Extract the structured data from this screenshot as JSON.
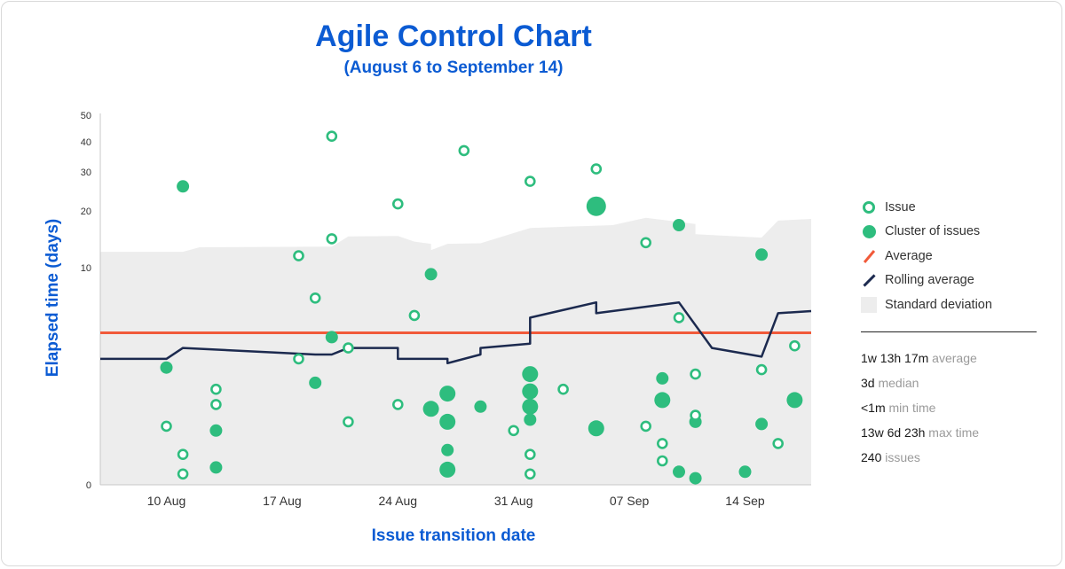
{
  "chart_data": {
    "type": "scatter",
    "title": "Agile Control Chart",
    "subtitle": "(August 6 to September 14)",
    "xlabel": "Issue transition date",
    "ylabel": "Elapsed time (days)",
    "x_tick_labels": [
      "10 Aug",
      "17 Aug",
      "24 Aug",
      "31 Aug",
      "07 Sep",
      "14 Sep"
    ],
    "x_tick_values": [
      "2018-08-10",
      "2018-08-17",
      "2018-08-24",
      "2018-08-31",
      "2018-09-07",
      "2018-09-14"
    ],
    "xlim": [
      "2018-08-06",
      "2018-09-18"
    ],
    "y_tick_values": [
      0,
      10,
      20,
      30,
      40,
      50
    ],
    "y_scale": "compressed",
    "ylim": [
      0,
      50
    ],
    "average_days": 7,
    "issues": [
      {
        "x": "2018-08-11",
        "y": 0.5
      },
      {
        "x": "2018-08-10",
        "y": 2.7
      },
      {
        "x": "2018-08-11",
        "y": 1.4
      },
      {
        "x": "2018-08-13",
        "y": 3.7
      },
      {
        "x": "2018-08-13",
        "y": 4.4
      },
      {
        "x": "2018-08-18",
        "y": 12.1
      },
      {
        "x": "2018-08-18",
        "y": 5.8
      },
      {
        "x": "2018-08-19",
        "y": 8.6
      },
      {
        "x": "2018-08-20",
        "y": 42.1
      },
      {
        "x": "2018-08-20",
        "y": 15.1
      },
      {
        "x": "2018-08-21",
        "y": 6.3
      },
      {
        "x": "2018-08-21",
        "y": 2.9
      },
      {
        "x": "2018-08-24",
        "y": 21.8
      },
      {
        "x": "2018-08-24",
        "y": 3.7
      },
      {
        "x": "2018-08-25",
        "y": 7.8
      },
      {
        "x": "2018-08-28",
        "y": 37.1
      },
      {
        "x": "2018-08-31",
        "y": 2.5
      },
      {
        "x": "2018-09-01",
        "y": 1.4
      },
      {
        "x": "2018-09-01",
        "y": 27.6
      },
      {
        "x": "2018-09-01",
        "y": 0.5
      },
      {
        "x": "2018-09-03",
        "y": 4.4
      },
      {
        "x": "2018-09-05",
        "y": 31.0
      },
      {
        "x": "2018-09-08",
        "y": 14.4
      },
      {
        "x": "2018-09-08",
        "y": 2.7
      },
      {
        "x": "2018-09-09",
        "y": 1.1
      },
      {
        "x": "2018-09-09",
        "y": 1.9
      },
      {
        "x": "2018-09-10",
        "y": 7.7
      },
      {
        "x": "2018-09-11",
        "y": 5.1
      },
      {
        "x": "2018-09-11",
        "y": 3.2
      },
      {
        "x": "2018-09-15",
        "y": 5.3
      },
      {
        "x": "2018-09-16",
        "y": 1.9
      },
      {
        "x": "2018-09-17",
        "y": 6.4
      }
    ],
    "clusters": [
      {
        "x": "2018-08-11",
        "y": 26.3,
        "size": "small"
      },
      {
        "x": "2018-08-10",
        "y": 5.4,
        "size": "small"
      },
      {
        "x": "2018-08-13",
        "y": 2.5,
        "size": "small"
      },
      {
        "x": "2018-08-13",
        "y": 0.8,
        "size": "small"
      },
      {
        "x": "2018-08-19",
        "y": 4.7,
        "size": "small"
      },
      {
        "x": "2018-08-20",
        "y": 6.8,
        "size": "small"
      },
      {
        "x": "2018-08-26",
        "y": 9.7,
        "size": "small"
      },
      {
        "x": "2018-08-26",
        "y": 3.5,
        "size": "medium"
      },
      {
        "x": "2018-08-27",
        "y": 1.6,
        "size": "small"
      },
      {
        "x": "2018-08-27",
        "y": 0.7,
        "size": "medium"
      },
      {
        "x": "2018-08-27",
        "y": 2.9,
        "size": "medium"
      },
      {
        "x": "2018-08-27",
        "y": 4.2,
        "size": "medium"
      },
      {
        "x": "2018-08-29",
        "y": 3.6,
        "size": "small"
      },
      {
        "x": "2018-09-01",
        "y": 5.1,
        "size": "medium"
      },
      {
        "x": "2018-09-01",
        "y": 3.6,
        "size": "medium"
      },
      {
        "x": "2018-09-01",
        "y": 4.3,
        "size": "medium"
      },
      {
        "x": "2018-09-01",
        "y": 3.0,
        "size": "small"
      },
      {
        "x": "2018-09-05",
        "y": 21.2,
        "size": "large"
      },
      {
        "x": "2018-09-05",
        "y": 2.6,
        "size": "medium"
      },
      {
        "x": "2018-09-09",
        "y": 4.9,
        "size": "small"
      },
      {
        "x": "2018-09-09",
        "y": 3.9,
        "size": "medium"
      },
      {
        "x": "2018-09-10",
        "y": 17.5,
        "size": "small"
      },
      {
        "x": "2018-09-10",
        "y": 0.6,
        "size": "small"
      },
      {
        "x": "2018-09-11",
        "y": 2.9,
        "size": "small"
      },
      {
        "x": "2018-09-11",
        "y": 0.3,
        "size": "small"
      },
      {
        "x": "2018-09-15",
        "y": 12.3,
        "size": "small"
      },
      {
        "x": "2018-09-15",
        "y": 2.8,
        "size": "small"
      },
      {
        "x": "2018-09-14",
        "y": 0.6,
        "size": "small"
      },
      {
        "x": "2018-09-17",
        "y": 3.9,
        "size": "medium"
      }
    ],
    "rolling_average": [
      {
        "x": "2018-08-06",
        "y": 5.8
      },
      {
        "x": "2018-08-10",
        "y": 5.8
      },
      {
        "x": "2018-08-11",
        "y": 6.3
      },
      {
        "x": "2018-08-19",
        "y": 6.0
      },
      {
        "x": "2018-08-20",
        "y": 6.0
      },
      {
        "x": "2018-08-21",
        "y": 6.3
      },
      {
        "x": "2018-08-24",
        "y": 6.3
      },
      {
        "x": "2018-08-24",
        "y": 5.8
      },
      {
        "x": "2018-08-27",
        "y": 5.8
      },
      {
        "x": "2018-08-27",
        "y": 5.6
      },
      {
        "x": "2018-08-29",
        "y": 6.0
      },
      {
        "x": "2018-08-29",
        "y": 6.3
      },
      {
        "x": "2018-09-01",
        "y": 6.5
      },
      {
        "x": "2018-09-01",
        "y": 7.7
      },
      {
        "x": "2018-09-05",
        "y": 8.4
      },
      {
        "x": "2018-09-05",
        "y": 7.9
      },
      {
        "x": "2018-09-10",
        "y": 8.4
      },
      {
        "x": "2018-09-12",
        "y": 6.3
      },
      {
        "x": "2018-09-15",
        "y": 5.9
      },
      {
        "x": "2018-09-16",
        "y": 7.9
      },
      {
        "x": "2018-09-18",
        "y": 8.0
      }
    ],
    "std_dev_upper": [
      {
        "x": "2018-08-06",
        "y": 12.8
      },
      {
        "x": "2018-08-11",
        "y": 12.8
      },
      {
        "x": "2018-08-12",
        "y": 13.6
      },
      {
        "x": "2018-08-20",
        "y": 13.7
      },
      {
        "x": "2018-08-21",
        "y": 15.5
      },
      {
        "x": "2018-08-24",
        "y": 15.6
      },
      {
        "x": "2018-08-25",
        "y": 14.6
      },
      {
        "x": "2018-08-26",
        "y": 14.2
      },
      {
        "x": "2018-08-26",
        "y": 13.1
      },
      {
        "x": "2018-08-27",
        "y": 14.2
      },
      {
        "x": "2018-08-29",
        "y": 14.3
      },
      {
        "x": "2018-09-01",
        "y": 17.0
      },
      {
        "x": "2018-09-06",
        "y": 17.5
      },
      {
        "x": "2018-09-08",
        "y": 18.8
      },
      {
        "x": "2018-09-11",
        "y": 17.7
      },
      {
        "x": "2018-09-11",
        "y": 15.9
      },
      {
        "x": "2018-09-15",
        "y": 15.3
      },
      {
        "x": "2018-09-16",
        "y": 18.3
      },
      {
        "x": "2018-09-18",
        "y": 18.6
      }
    ],
    "colors": {
      "issue": "#2ebd7e",
      "cluster": "#2ebd7e",
      "average": "#f15a3a",
      "rolling_average": "#1c2a4f",
      "std_dev": "#ededed",
      "title": "#0b5bd3"
    },
    "legend": {
      "position": "right",
      "items": [
        "Issue",
        "Cluster of issues",
        "Average",
        "Rolling average",
        "Standard deviation"
      ]
    }
  },
  "stats": [
    {
      "value": "1w 13h 17m",
      "label": "average"
    },
    {
      "value": "3d",
      "label": "median"
    },
    {
      "value": "<1m",
      "label": "min time"
    },
    {
      "value": "13w 6d 23h",
      "label": "max time"
    },
    {
      "value": "240",
      "label": "issues"
    }
  ]
}
